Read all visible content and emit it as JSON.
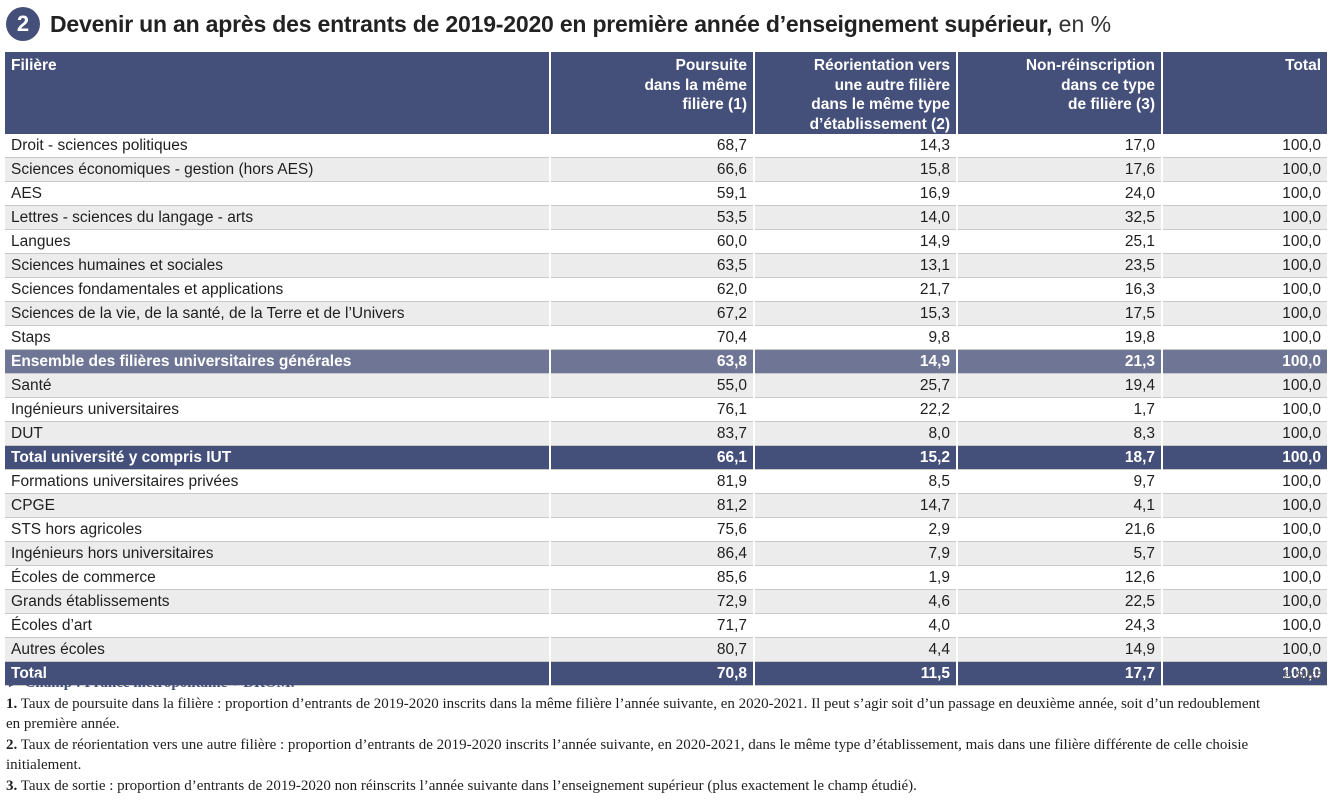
{
  "title": {
    "number": "2",
    "text": "Devenir un an après des entrants de 2019-2020 en première année d’enseignement supérieur,",
    "unit": " en %"
  },
  "table": {
    "headers": [
      "Filière",
      "Poursuite\ndans la même\nfilière (1)",
      "Réorientation vers\nune autre filière\ndans le même type\nd’établissement (2)",
      "Non-réinscription\ndans ce type\nde filière (3)",
      "Total"
    ],
    "rows": [
      {
        "type": "row",
        "cells": [
          "Droit - sciences politiques",
          "68,7",
          "14,3",
          "17,0",
          "100,0"
        ]
      },
      {
        "type": "row",
        "cells": [
          "Sciences économiques - gestion (hors AES)",
          "66,6",
          "15,8",
          "17,6",
          "100,0"
        ]
      },
      {
        "type": "row",
        "cells": [
          "AES",
          "59,1",
          "16,9",
          "24,0",
          "100,0"
        ]
      },
      {
        "type": "row",
        "cells": [
          "Lettres - sciences du langage - arts",
          "53,5",
          "14,0",
          "32,5",
          "100,0"
        ]
      },
      {
        "type": "row",
        "cells": [
          "Langues",
          "60,0",
          "14,9",
          "25,1",
          "100,0"
        ]
      },
      {
        "type": "row",
        "cells": [
          "Sciences humaines et sociales",
          "63,5",
          "13,1",
          "23,5",
          "100,0"
        ]
      },
      {
        "type": "row",
        "cells": [
          "Sciences fondamentales et applications",
          "62,0",
          "21,7",
          "16,3",
          "100,0"
        ]
      },
      {
        "type": "row",
        "cells": [
          "Sciences de la vie, de la santé, de la Terre et de l’Univers",
          "67,2",
          "15,3",
          "17,5",
          "100,0"
        ]
      },
      {
        "type": "row",
        "cells": [
          "Staps",
          "70,4",
          "9,8",
          "19,8",
          "100,0"
        ]
      },
      {
        "type": "subtotal",
        "cells": [
          "Ensemble des filières universitaires générales",
          "63,8",
          "14,9",
          "21,3",
          "100,0"
        ]
      },
      {
        "type": "row",
        "cells": [
          "Santé",
          "55,0",
          "25,7",
          "19,4",
          "100,0"
        ]
      },
      {
        "type": "row",
        "cells": [
          "Ingénieurs universitaires",
          "76,1",
          "22,2",
          "1,7",
          "100,0"
        ]
      },
      {
        "type": "row",
        "cells": [
          "DUT",
          "83,7",
          "8,0",
          "8,3",
          "100,0"
        ]
      },
      {
        "type": "total",
        "cells": [
          "Total université y compris IUT",
          "66,1",
          "15,2",
          "18,7",
          "100,0"
        ]
      },
      {
        "type": "row",
        "cells": [
          "Formations universitaires privées",
          "81,9",
          "8,5",
          "9,7",
          "100,0"
        ]
      },
      {
        "type": "row",
        "cells": [
          "CPGE",
          "81,2",
          "14,7",
          "4,1",
          "100,0"
        ]
      },
      {
        "type": "row",
        "cells": [
          "STS hors agricoles",
          "75,6",
          "2,9",
          "21,6",
          "100,0"
        ]
      },
      {
        "type": "row",
        "cells": [
          "Ingénieurs hors universitaires",
          "86,4",
          "7,9",
          "5,7",
          "100,0"
        ]
      },
      {
        "type": "row",
        "cells": [
          "Écoles de commerce",
          "85,6",
          "1,9",
          "12,6",
          "100,0"
        ]
      },
      {
        "type": "row",
        "cells": [
          "Grands établissements",
          "72,9",
          "4,6",
          "22,5",
          "100,0"
        ]
      },
      {
        "type": "row",
        "cells": [
          "Écoles d’art",
          "71,7",
          "4,0",
          "24,3",
          "100,0"
        ]
      },
      {
        "type": "row",
        "cells": [
          "Autres écoles",
          "80,7",
          "4,4",
          "14,9",
          "100,0"
        ]
      },
      {
        "type": "total",
        "cells": [
          "Total",
          "70,8",
          "11,5",
          "17,7",
          "100,0"
        ]
      }
    ]
  },
  "credit": "© SIES",
  "notes": {
    "champ": "► Champ : France métropolitaine + DROM.",
    "items": [
      {
        "num": "1.",
        "text": " Taux de poursuite dans la filière : proportion d’entrants de 2019-2020 inscrits dans la même filière l’année suivante, en 2020-2021. Il peut s’agir soit d’un passage en deuxième année, soit d’un redoublement en première année."
      },
      {
        "num": "2.",
        "text": " Taux de réorientation vers une autre filière : proportion d’entrants de 2019-2020 inscrits l’année suivante, en 2020-2021, dans le même type d’établissement, mais dans une filière différente de celle choisie initialement."
      },
      {
        "num": "3.",
        "text": " Taux de sortie : proportion d’entrants de 2019-2020 non réinscrits l’année suivante dans l’enseignement supérieur (plus exactement le champ étudié)."
      }
    ]
  }
}
